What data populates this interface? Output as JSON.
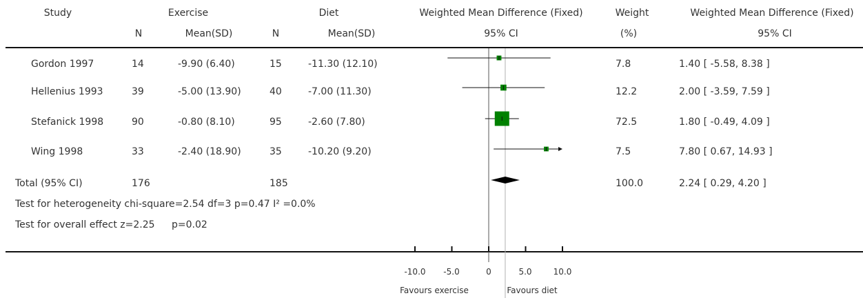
{
  "header": {
    "study": "Study",
    "group1": "Exercise",
    "group2": "Diet",
    "n1": "N",
    "mean1": "Mean(SD)",
    "n2": "N",
    "mean2": "Mean(SD)",
    "plot_title": "Weighted Mean Difference (Fixed)",
    "plot_ci": "95% CI",
    "weight": "Weight",
    "weight_unit": "(%)",
    "effect_title": "Weighted Mean Difference (Fixed)",
    "effect_ci": "95% CI"
  },
  "studies": [
    {
      "name": "Gordon 1997",
      "n1": "14",
      "mean1": "-9.90 (6.40)",
      "n2": "15",
      "mean2": "-11.30 (12.10)",
      "weight": "7.8",
      "effect": "1.40 [ -5.58, 8.38 ]"
    },
    {
      "name": "Hellenius 1993",
      "n1": "39",
      "mean1": "-5.00 (13.90)",
      "n2": "40",
      "mean2": "-7.00 (11.30)",
      "weight": "12.2",
      "effect": "2.00 [ -3.59, 7.59 ]"
    },
    {
      "name": "Stefanick 1998",
      "n1": "90",
      "mean1": "-0.80 (8.10)",
      "n2": "95",
      "mean2": "-2.60 (7.80)",
      "weight": "72.5",
      "effect": "1.80 [ -0.49, 4.09 ]"
    },
    {
      "name": "Wing 1998",
      "n1": "33",
      "mean1": "-2.40 (18.90)",
      "n2": "35",
      "mean2": "-10.20 (9.20)",
      "weight": "7.5",
      "effect": "7.80 [ 0.67, 14.93 ]"
    }
  ],
  "total": {
    "label": "Total (95% CI)",
    "n1": "176",
    "n2": "185",
    "weight": "100.0",
    "effect": "2.24 [ 0.29, 4.20 ]"
  },
  "tests": {
    "heterogeneity": "Test for heterogeneity chi-square=2.54 df=3 p=0.47 I² =0.0%",
    "overall_label": "Test for overall effect z=2.25",
    "overall_p": "p=0.02"
  },
  "axis": {
    "ticks": [
      "-10.0",
      "-5.0",
      "0",
      "5.0",
      "10.0"
    ],
    "favours_left": "Favours exercise",
    "favours_right": "Favours diet"
  },
  "colors": {
    "marker": "#008000",
    "line": "#111111",
    "reference": "#b0b0b0"
  },
  "chart_data": {
    "type": "forest",
    "effect_measure": "Weighted Mean Difference (Fixed)",
    "x_display_range": [
      -10,
      10
    ],
    "x_ticks": [
      -10,
      -5,
      0,
      5,
      10
    ],
    "null_line": 0,
    "studies": [
      {
        "name": "Gordon 1997",
        "mean": 1.4,
        "lower": -5.58,
        "upper": 8.38,
        "weight": 7.8
      },
      {
        "name": "Hellenius 1993",
        "mean": 2.0,
        "lower": -3.59,
        "upper": 7.59,
        "weight": 12.2
      },
      {
        "name": "Stefanick 1998",
        "mean": 1.8,
        "lower": -0.49,
        "upper": 4.09,
        "weight": 72.5
      },
      {
        "name": "Wing 1998",
        "mean": 7.8,
        "lower": 0.67,
        "upper": 14.93,
        "weight": 7.5
      }
    ],
    "pooled": {
      "mean": 2.24,
      "lower": 0.29,
      "upper": 4.2
    }
  }
}
